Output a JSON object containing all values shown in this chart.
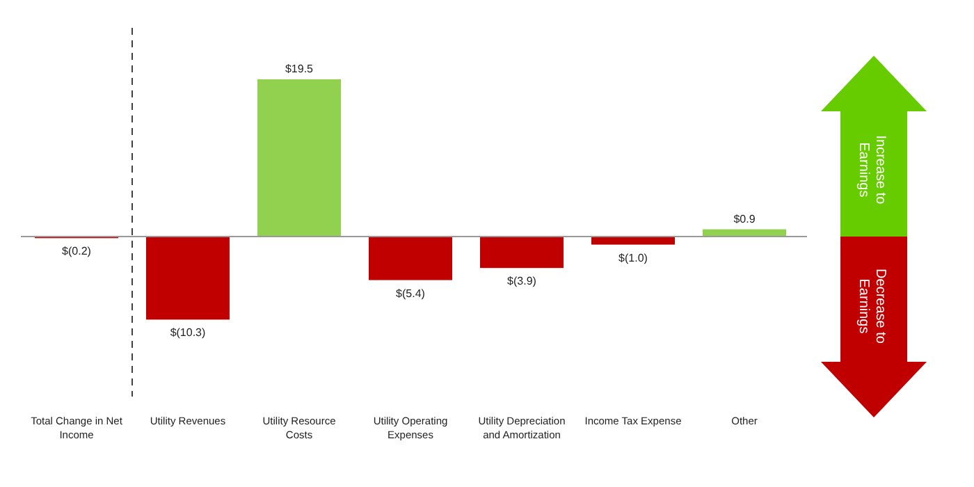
{
  "chart_data": {
    "type": "bar",
    "categories": [
      "Total Change in Net Income",
      "Utility Revenues",
      "Utility Resource Costs",
      "Utility Operating Expenses",
      "Utility Depreciation and Amortization",
      "Income Tax Expense",
      "Other"
    ],
    "values": [
      -0.2,
      -10.3,
      19.5,
      -5.4,
      -3.9,
      -1.0,
      0.9
    ],
    "colors": [
      "#c00000",
      "#c00000",
      "#92d050",
      "#c00000",
      "#c00000",
      "#c00000",
      "#92d050"
    ],
    "value_labels": [
      "$(0.2)",
      "$(10.3)",
      "$19.5",
      "$(5.4)",
      "$(3.9)",
      "$(1.0)",
      "$0.9"
    ],
    "annotations": [
      "Increase to Earnings",
      "Decrease to Earnings"
    ],
    "grid": false
  }
}
